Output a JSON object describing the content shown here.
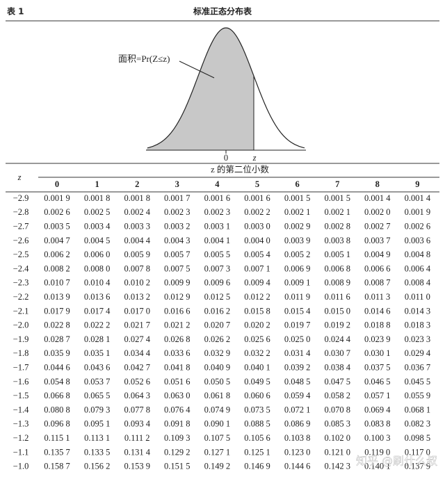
{
  "header": {
    "label": "表 1",
    "title": "标准正态分布表"
  },
  "figure": {
    "annotation": "面积=Pr(Z≤z)",
    "axis_labels": [
      "0",
      "z"
    ]
  },
  "table": {
    "row_header": "z",
    "column_group": "z 的第二位小数",
    "columns": [
      "0",
      "1",
      "2",
      "3",
      "4",
      "5",
      "6",
      "7",
      "8",
      "9"
    ],
    "rows": [
      [
        "−2.9",
        "0.001 9",
        "0.001 8",
        "0.001 8",
        "0.001 7",
        "0.001 6",
        "0.001 6",
        "0.001 5",
        "0.001 5",
        "0.001 4",
        "0.001 4"
      ],
      [
        "−2.8",
        "0.002 6",
        "0.002 5",
        "0.002 4",
        "0.002 3",
        "0.002 3",
        "0.002 2",
        "0.002 1",
        "0.002 1",
        "0.002 0",
        "0.001 9"
      ],
      [
        "−2.7",
        "0.003 5",
        "0.003 4",
        "0.003 3",
        "0.003 2",
        "0.003 1",
        "0.003 0",
        "0.002 9",
        "0.002 8",
        "0.002 7",
        "0.002 6"
      ],
      [
        "−2.6",
        "0.004 7",
        "0.004 5",
        "0.004 4",
        "0.004 3",
        "0.004 1",
        "0.004 0",
        "0.003 9",
        "0.003 8",
        "0.003 7",
        "0.003 6"
      ],
      [
        "−2.5",
        "0.006 2",
        "0.006 0",
        "0.005 9",
        "0.005 7",
        "0.005 5",
        "0.005 4",
        "0.005 2",
        "0.005 1",
        "0.004 9",
        "0.004 8"
      ],
      [
        "−2.4",
        "0.008 2",
        "0.008 0",
        "0.007 8",
        "0.007 5",
        "0.007 3",
        "0.007 1",
        "0.006 9",
        "0.006 8",
        "0.006 6",
        "0.006 4"
      ],
      [
        "−2.3",
        "0.010 7",
        "0.010 4",
        "0.010 2",
        "0.009 9",
        "0.009 6",
        "0.009 4",
        "0.009 1",
        "0.008 9",
        "0.008 7",
        "0.008 4"
      ],
      [
        "−2.2",
        "0.013 9",
        "0.013 6",
        "0.013 2",
        "0.012 9",
        "0.012 5",
        "0.012 2",
        "0.011 9",
        "0.011 6",
        "0.011 3",
        "0.011 0"
      ],
      [
        "−2.1",
        "0.017 9",
        "0.017 4",
        "0.017 0",
        "0.016 6",
        "0.016 2",
        "0.015 8",
        "0.015 4",
        "0.015 0",
        "0.014 6",
        "0.014 3"
      ],
      [
        "−2.0",
        "0.022 8",
        "0.022 2",
        "0.021 7",
        "0.021 2",
        "0.020 7",
        "0.020 2",
        "0.019 7",
        "0.019 2",
        "0.018 8",
        "0.018 3"
      ],
      [
        "−1.9",
        "0.028 7",
        "0.028 1",
        "0.027 4",
        "0.026 8",
        "0.026 2",
        "0.025 6",
        "0.025 0",
        "0.024 4",
        "0.023 9",
        "0.023 3"
      ],
      [
        "−1.8",
        "0.035 9",
        "0.035 1",
        "0.034 4",
        "0.033 6",
        "0.032 9",
        "0.032 2",
        "0.031 4",
        "0.030 7",
        "0.030 1",
        "0.029 4"
      ],
      [
        "−1.7",
        "0.044 6",
        "0.043 6",
        "0.042 7",
        "0.041 8",
        "0.040 9",
        "0.040 1",
        "0.039 2",
        "0.038 4",
        "0.037 5",
        "0.036 7"
      ],
      [
        "−1.6",
        "0.054 8",
        "0.053 7",
        "0.052 6",
        "0.051 6",
        "0.050 5",
        "0.049 5",
        "0.048 5",
        "0.047 5",
        "0.046 5",
        "0.045 5"
      ],
      [
        "−1.5",
        "0.066 8",
        "0.065 5",
        "0.064 3",
        "0.063 0",
        "0.061 8",
        "0.060 6",
        "0.059 4",
        "0.058 2",
        "0.057 1",
        "0.055 9"
      ],
      [
        "−1.4",
        "0.080 8",
        "0.079 3",
        "0.077 8",
        "0.076 4",
        "0.074 9",
        "0.073 5",
        "0.072 1",
        "0.070 8",
        "0.069 4",
        "0.068 1"
      ],
      [
        "−1.3",
        "0.096 8",
        "0.095 1",
        "0.093 4",
        "0.091 8",
        "0.090 1",
        "0.088 5",
        "0.086 9",
        "0.085 3",
        "0.083 8",
        "0.082 3"
      ],
      [
        "−1.2",
        "0.115 1",
        "0.113 1",
        "0.111 2",
        "0.109 3",
        "0.107 5",
        "0.105 6",
        "0.103 8",
        "0.102 0",
        "0.100 3",
        "0.098 5"
      ],
      [
        "−1.1",
        "0.135 7",
        "0.133 5",
        "0.131 4",
        "0.129 2",
        "0.127 1",
        "0.125 1",
        "0.123 0",
        "0.121 0",
        "0.119 0",
        "0.117 0"
      ],
      [
        "−1.0",
        "0.158 7",
        "0.156 2",
        "0.153 9",
        "0.151 5",
        "0.149 2",
        "0.146 9",
        "0.144 6",
        "0.142 3",
        "0.140 1",
        "0.137 9"
      ]
    ]
  },
  "watermark": "知乎 @刷什么叔"
}
